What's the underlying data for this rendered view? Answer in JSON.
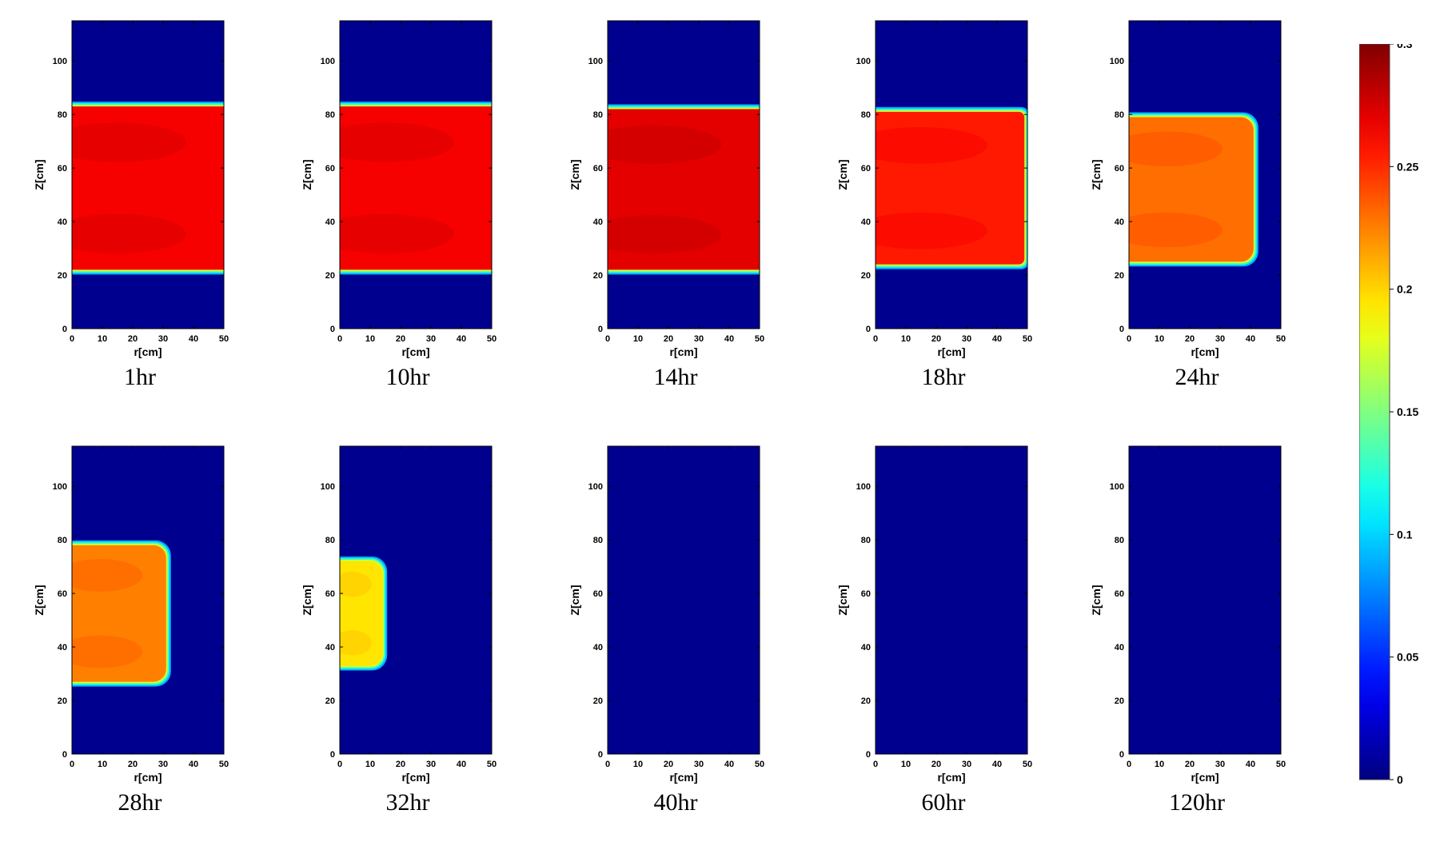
{
  "chart_data": {
    "type": "heatmap",
    "quantity_colormap": "jet",
    "xlabel": "r[cm]",
    "ylabel": "Z[cm]",
    "xlim": [
      0,
      50
    ],
    "ylim": [
      0,
      115
    ],
    "x_ticks": [
      "0",
      "10",
      "20",
      "30",
      "40",
      "50"
    ],
    "y_ticks": [
      "0",
      "20",
      "40",
      "60",
      "80",
      "100"
    ],
    "colorbar": {
      "range": [
        0,
        0.3
      ],
      "ticks": [
        "0",
        "0.05",
        "0.1",
        "0.15",
        "0.2",
        "0.25",
        "0.3"
      ]
    },
    "colors": {
      "background_level": "#00008f",
      "axes_edge": "#000000"
    },
    "panels": [
      {
        "label": "1hr",
        "r_max": 50,
        "z_bottom": 22,
        "z_top": 83,
        "value": 0.265,
        "corner": "square"
      },
      {
        "label": "10hr",
        "r_max": 50,
        "z_bottom": 22,
        "z_top": 83,
        "value": 0.265,
        "corner": "square"
      },
      {
        "label": "14hr",
        "r_max": 50,
        "z_bottom": 22,
        "z_top": 82,
        "value": 0.27,
        "corner": "square"
      },
      {
        "label": "18hr",
        "r_max": 49,
        "z_bottom": 24,
        "z_top": 81,
        "value": 0.255,
        "corner": "soft"
      },
      {
        "label": "24hr",
        "r_max": 41,
        "z_bottom": 25,
        "z_top": 79,
        "value": 0.23,
        "corner": "round"
      },
      {
        "label": "28hr",
        "r_max": 31,
        "z_bottom": 27,
        "z_top": 78,
        "value": 0.225,
        "corner": "round"
      },
      {
        "label": "32hr",
        "r_max": 14,
        "z_bottom": 33,
        "z_top": 72,
        "value": 0.195,
        "corner": "round"
      },
      {
        "label": "40hr",
        "r_max": 0,
        "z_bottom": 0,
        "z_top": 0,
        "value": 0,
        "corner": "none"
      },
      {
        "label": "60hr",
        "r_max": 0,
        "z_bottom": 0,
        "z_top": 0,
        "value": 0,
        "corner": "none"
      },
      {
        "label": "120hr",
        "r_max": 0,
        "z_bottom": 0,
        "z_top": 0,
        "value": 0,
        "corner": "none"
      }
    ]
  }
}
